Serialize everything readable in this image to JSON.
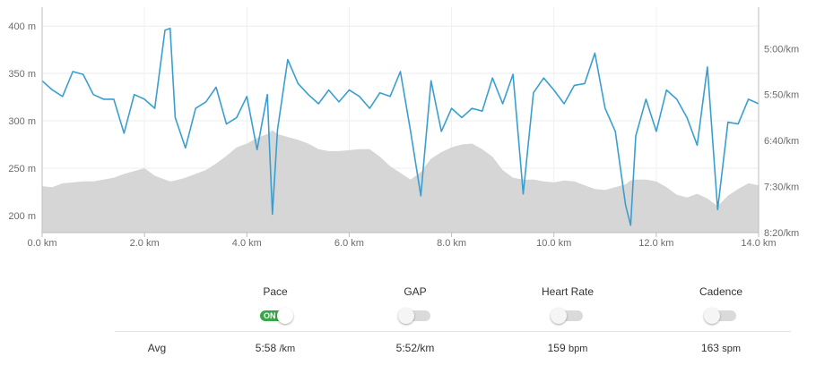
{
  "chart_data": {
    "type": "line",
    "x": [
      0.0,
      0.2,
      0.4,
      0.6,
      0.8,
      1.0,
      1.2,
      1.4,
      1.6,
      1.8,
      2.0,
      2.2,
      2.4,
      2.5,
      2.6,
      2.8,
      3.0,
      3.2,
      3.4,
      3.6,
      3.8,
      4.0,
      4.2,
      4.4,
      4.5,
      4.6,
      4.8,
      5.0,
      5.2,
      5.4,
      5.6,
      5.8,
      6.0,
      6.2,
      6.4,
      6.6,
      6.8,
      7.0,
      7.2,
      7.4,
      7.6,
      7.8,
      8.0,
      8.2,
      8.4,
      8.6,
      8.8,
      9.0,
      9.2,
      9.4,
      9.6,
      9.8,
      10.0,
      10.2,
      10.4,
      10.6,
      10.8,
      11.0,
      11.2,
      11.4,
      11.5,
      11.6,
      11.8,
      12.0,
      12.2,
      12.4,
      12.6,
      12.8,
      13.0,
      13.2,
      13.4,
      13.6,
      13.8,
      14.0
    ],
    "series": [
      {
        "axis": "left",
        "style": "area",
        "color": "#d6d6d6",
        "values": [
          231,
          230,
          234,
          235,
          236,
          236,
          238,
          240,
          244,
          247,
          250,
          242,
          238,
          236,
          237,
          240,
          244,
          248,
          255,
          263,
          272,
          276,
          282,
          286,
          290,
          286,
          283,
          280,
          276,
          270,
          268,
          268,
          269,
          270,
          270,
          262,
          252,
          245,
          238,
          246,
          260,
          267,
          272,
          275,
          276,
          270,
          262,
          248,
          240,
          238,
          238,
          236,
          235,
          237,
          236,
          232,
          228,
          227,
          230,
          233,
          237,
          238,
          238,
          236,
          230,
          222,
          219,
          223,
          218,
          210,
          221,
          228,
          234,
          232
        ]
      },
      {
        "axis": "right",
        "style": "line",
        "color": "#3a9fd0",
        "values": [
          "5:35",
          "5:45",
          "5:52",
          "5:25",
          "5:28",
          "5:50",
          "5:55",
          "5:55",
          "6:32",
          "5:50",
          "5:55",
          "6:05",
          "4:40",
          "4:38",
          "6:15",
          "6:48",
          "6:05",
          "5:58",
          "5:42",
          "6:22",
          "6:15",
          "5:52",
          "6:50",
          "5:50",
          "8:00",
          "6:28",
          "5:12",
          "5:38",
          "5:50",
          "6:00",
          "5:45",
          "5:58",
          "5:45",
          "5:52",
          "6:05",
          "5:48",
          "5:52",
          "5:25",
          "6:30",
          "7:40",
          "5:35",
          "6:30",
          "6:05",
          "6:15",
          "6:05",
          "6:08",
          "5:32",
          "6:00",
          "5:28",
          "7:38",
          "5:48",
          "5:32",
          "5:45",
          "6:00",
          "5:40",
          "5:38",
          "5:05",
          "6:05",
          "6:30",
          "7:50",
          "8:12",
          "6:35",
          "5:55",
          "6:30",
          "5:45",
          "5:55",
          "6:15",
          "6:45",
          "5:20",
          "7:55",
          "6:20",
          "6:22",
          "5:55",
          "6:00"
        ]
      }
    ],
    "x_ticks": [
      "0.0 km",
      "2.0 km",
      "4.0 km",
      "6.0 km",
      "8.0 km",
      "10.0 km",
      "12.0 km",
      "14.0 km"
    ],
    "y_left_ticks": [
      "200 m",
      "250 m",
      "300 m",
      "350 m",
      "400 m"
    ],
    "y_right_ticks": [
      "5:00/km",
      "5:50/km",
      "6:40/km",
      "7:30/km",
      "8:20/km"
    ],
    "xlim": [
      0,
      14
    ],
    "ylim_left": [
      182,
      420
    ],
    "ylim_right_seconds": [
      255,
      500
    ],
    "grid": true
  },
  "toggles": [
    {
      "label": "Pace",
      "on": true,
      "on_text": "ON"
    },
    {
      "label": "GAP",
      "on": false,
      "on_text": ""
    },
    {
      "label": "Heart Rate",
      "on": false,
      "on_text": ""
    },
    {
      "label": "Cadence",
      "on": false,
      "on_text": ""
    }
  ],
  "avg": {
    "label": "Avg",
    "pace_value": "5:58",
    "pace_unit": "/km",
    "gap_value": "5:52/km",
    "hr_value": "159",
    "hr_unit": "bpm",
    "cadence_value": "163",
    "cadence_unit": "spm"
  }
}
